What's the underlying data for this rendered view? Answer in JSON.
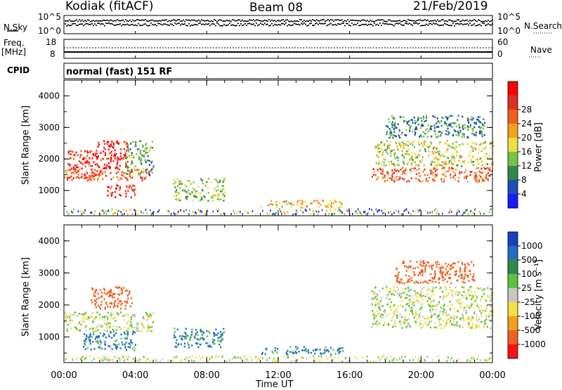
{
  "header": {
    "station": "Kodiak (fitACF)",
    "beam": "Beam 08",
    "date": "21/Feb/2019"
  },
  "panels": {
    "sky": {
      "left_label": "N.Sky",
      "right_label": "N.Search",
      "left_ticks": [
        "10^5",
        "10^0"
      ],
      "right_ticks": [
        "10^5",
        "10^0"
      ]
    },
    "freq": {
      "left_label_1": "Freq.",
      "left_label_2": "[MHz]",
      "right_label": "Nave",
      "left_ticks": [
        "18",
        "8"
      ],
      "right_ticks": [
        "60",
        "0"
      ]
    },
    "cpid": {
      "label": "CPID",
      "mode": "normal (fast) 151 RF"
    }
  },
  "colors": {
    "power_scale": [
      "#1a1aff",
      "#1f4fb0",
      "#2e8a4a",
      "#78c24a",
      "#f0e040",
      "#f4a020",
      "#f06020",
      "#e03020",
      "#ff0000"
    ],
    "velocity_scale": [
      "#1a40c0",
      "#2070c0",
      "#2e8a4a",
      "#60c040",
      "#c8c8c0",
      "#f8e040",
      "#f0a020",
      "#f06020",
      "#ff1010"
    ],
    "ground_scatter": "#c8c8c0"
  },
  "chart_data": [
    {
      "type": "heatmap",
      "title": "Power",
      "ylabel": "Slant Range [km]",
      "xlabel": "",
      "x_ticks": [
        "00:00",
        "04:00",
        "08:00",
        "12:00",
        "16:00",
        "20:00",
        "00:00"
      ],
      "y_ticks": [
        "1000",
        "2000",
        "3000",
        "4000"
      ],
      "ylim": [
        200,
        4500
      ],
      "xlim_hours": [
        0,
        24
      ],
      "colorbar": {
        "label": "Power [dB]",
        "ticks": [
          "4",
          "8",
          "12",
          "16",
          "20",
          "24",
          "28"
        ],
        "range": [
          0,
          30
        ]
      },
      "echo_regions": [
        {
          "t": [
            0.2,
            2.0
          ],
          "range": [
            1400,
            2300
          ],
          "value": 26
        },
        {
          "t": [
            1.8,
            3.6
          ],
          "range": [
            1700,
            2600
          ],
          "value": 28
        },
        {
          "t": [
            0.0,
            4.8
          ],
          "range": [
            1350,
            1700
          ],
          "value": 22
        },
        {
          "t": [
            2.4,
            4.0
          ],
          "range": [
            800,
            1200
          ],
          "value": 26
        },
        {
          "t": [
            3.4,
            5.0
          ],
          "range": [
            1500,
            2600
          ],
          "value": 10
        },
        {
          "t": [
            6.1,
            9.0
          ],
          "range": [
            700,
            1400
          ],
          "value": 12
        },
        {
          "t": [
            11.0,
            15.6
          ],
          "range": [
            480,
            720
          ],
          "value": 16
        },
        {
          "t": [
            17.2,
            24.0
          ],
          "range": [
            1300,
            1750
          ],
          "value": 22
        },
        {
          "t": [
            17.4,
            24.0
          ],
          "range": [
            1800,
            2600
          ],
          "value": 14
        },
        {
          "t": [
            18.0,
            23.6
          ],
          "range": [
            2700,
            3400
          ],
          "value": 8
        }
      ]
    },
    {
      "type": "heatmap",
      "title": "Velocity",
      "ylabel": "Slant Range [km]",
      "xlabel": "Time UT",
      "x_ticks": [
        "00:00",
        "04:00",
        "08:00",
        "12:00",
        "16:00",
        "20:00",
        "00:00"
      ],
      "y_ticks": [
        "1000",
        "2000",
        "3000",
        "4000"
      ],
      "ylim": [
        200,
        4500
      ],
      "xlim_hours": [
        0,
        24
      ],
      "colorbar": {
        "label": "Velocity [m s⁻¹]",
        "ticks": [
          "1000",
          "500",
          "100",
          "25",
          "-25",
          "-100",
          "-500",
          "-1000"
        ]
      },
      "echo_regions": [
        {
          "t": [
            0.0,
            5.0
          ],
          "range": [
            1200,
            1800
          ],
          "value": 0
        },
        {
          "t": [
            1.5,
            3.8
          ],
          "range": [
            1900,
            2600
          ],
          "value": -400
        },
        {
          "t": [
            1.0,
            4.0
          ],
          "range": [
            600,
            1200
          ],
          "value": 150
        },
        {
          "t": [
            6.1,
            9.0
          ],
          "range": [
            700,
            1300
          ],
          "value": 150
        },
        {
          "t": [
            11.0,
            15.6
          ],
          "range": [
            480,
            720
          ],
          "value": 150
        },
        {
          "t": [
            17.2,
            24.0
          ],
          "range": [
            1300,
            2600
          ],
          "value": 0
        },
        {
          "t": [
            18.5,
            23.0
          ],
          "range": [
            2700,
            3400
          ],
          "value": -400
        }
      ]
    }
  ]
}
